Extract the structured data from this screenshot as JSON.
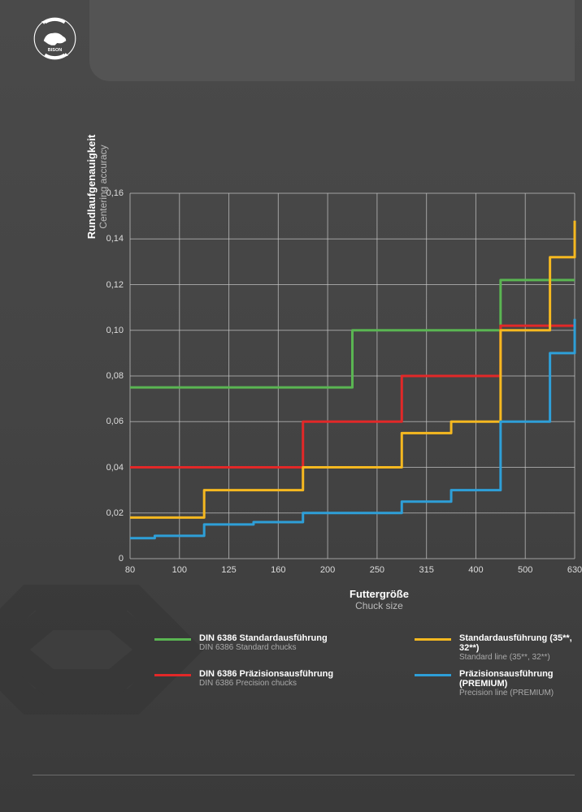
{
  "logo_text": "BISON",
  "chart": {
    "type": "line",
    "ylabel": "Rundlaufgenauigkeit",
    "ylabel_sub": "Centering accuracy",
    "xlabel": "Futtergröße",
    "xlabel_sub": "Chuck size",
    "grid_color": "#c8c8c8",
    "background_color": "transparent",
    "line_width": 3,
    "ylim": [
      0,
      0.16
    ],
    "ytick_step": 0.02,
    "yticks": [
      "0",
      "0,02",
      "0,04",
      "0,06",
      "0,08",
      "0,10",
      "0,12",
      "0,14",
      "0,16"
    ],
    "xticks": [
      "80",
      "100",
      "125",
      "160",
      "200",
      "250",
      "315",
      "400",
      "500",
      "630"
    ],
    "series": [
      {
        "id": "din_std",
        "color": "#5ab552",
        "values": [
          0.075,
          0.075,
          0.075,
          0.075,
          0.075,
          0.1,
          0.1,
          0.1,
          0.122,
          0.122
        ]
      },
      {
        "id": "din_prec",
        "color": "#e22828",
        "values": [
          0.04,
          0.04,
          0.04,
          0.04,
          0.06,
          0.06,
          0.08,
          0.08,
          0.102,
          0.102
        ]
      },
      {
        "id": "std_line",
        "color": "#f5b820",
        "values": [
          0.018,
          0.018,
          0.03,
          0.03,
          0.04,
          0.04,
          0.055,
          0.06,
          0.1,
          0.132
        ]
      },
      {
        "id": "prec_line",
        "color": "#2e9fd8",
        "values": [
          0.009,
          0.01,
          0.015,
          0.016,
          0.02,
          0.02,
          0.025,
          0.03,
          0.06,
          0.09
        ]
      }
    ]
  },
  "legend": [
    {
      "id": "din_std",
      "color": "#5ab552",
      "title": "DIN 6386 Standardausführung",
      "sub": "DIN 6386 Standard chucks"
    },
    {
      "id": "din_prec",
      "color": "#e22828",
      "title": "DIN 6386 Präzisionsausführung",
      "sub": "DIN 6386 Precision chucks"
    },
    {
      "id": "std_line",
      "color": "#f5b820",
      "title": "Standardausführung (35**, 32**)",
      "sub": "Standard line (35**, 32**)"
    },
    {
      "id": "prec_line",
      "color": "#2e9fd8",
      "title": "Präzisionsausführung (PREMIUM)",
      "sub": "Precision line (PREMIUM)"
    }
  ]
}
